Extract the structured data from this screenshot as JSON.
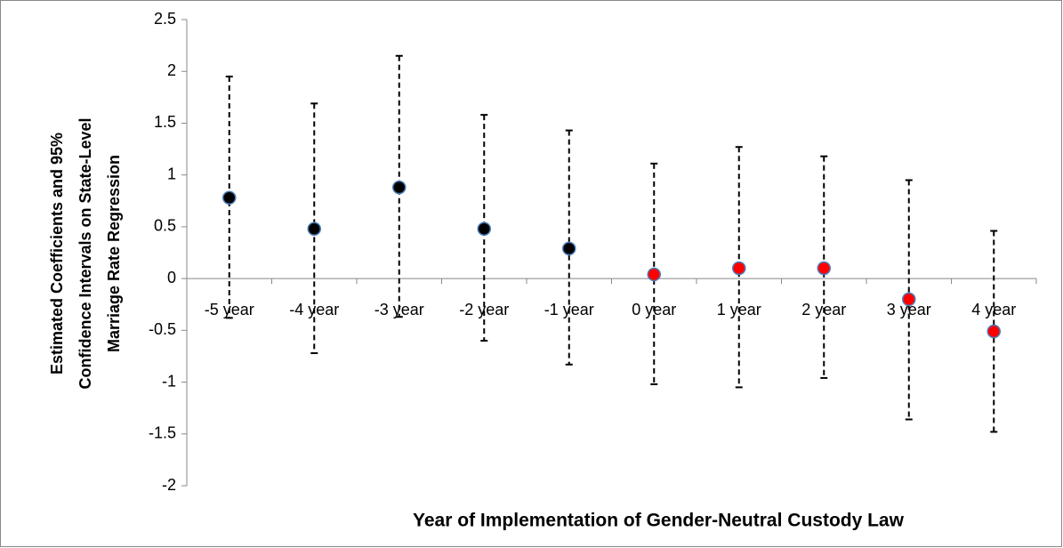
{
  "chart_data": {
    "type": "errorbar",
    "ylabel": [
      "Estimated Coefficients  and 95%",
      "Confidence Intervals on State-Level",
      "Marriage  Rate Regression"
    ],
    "xlabel": "Year of Implementation of Gender-Neutral Custody Law",
    "categories": [
      "-5 year",
      "-4 year",
      "-3 year",
      "-2 year",
      "-1 year",
      "0 year",
      "1 year",
      "2 year",
      "3 year",
      "4 year"
    ],
    "series": [
      {
        "values": [
          0.78,
          0.48,
          0.88,
          0.48,
          0.29,
          0.04,
          0.1,
          0.1,
          -0.2,
          -0.51
        ],
        "upper": [
          1.95,
          1.69,
          2.15,
          1.58,
          1.43,
          1.11,
          1.27,
          1.18,
          0.95,
          0.46
        ],
        "lower": [
          -0.38,
          -0.72,
          -0.37,
          -0.6,
          -0.83,
          -1.02,
          -1.05,
          -0.96,
          -1.36,
          -1.48
        ],
        "colors": [
          "#000000",
          "#000000",
          "#000000",
          "#000000",
          "#000000",
          "#ff0000",
          "#ff0000",
          "#ff0000",
          "#ff0000",
          "#ff0000"
        ]
      }
    ],
    "ylim": [
      -2,
      2.5
    ],
    "yticks": [
      2.5,
      2,
      1.5,
      1,
      0.5,
      0,
      -0.5,
      -1,
      -1.5,
      -2
    ],
    "grid": false
  }
}
